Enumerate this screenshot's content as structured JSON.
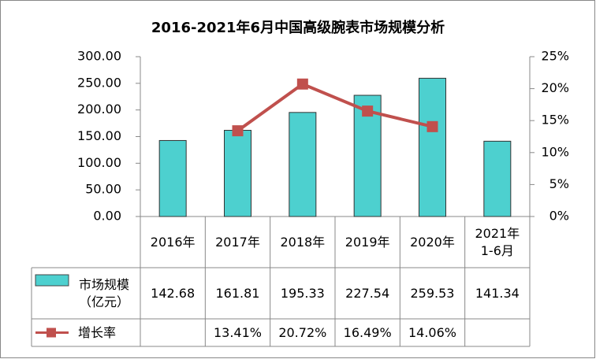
{
  "chart_data": {
    "type": "bar-line",
    "title": "2016-2021年6月中国高级腕表市场规模分析",
    "categories": [
      "2016年",
      "2017年",
      "2018年",
      "2019年",
      "2020年",
      "2021年\n1-6月"
    ],
    "series": [
      {
        "name": "市场规模\n（亿元）",
        "type": "bar",
        "color": "#4dd0cf",
        "values": [
          142.68,
          161.81,
          195.33,
          227.54,
          259.53,
          141.34
        ]
      },
      {
        "name": "增长率",
        "type": "line",
        "axis": "y2",
        "color": "#c0504d",
        "values": [
          null,
          13.41,
          20.72,
          16.49,
          14.06,
          null
        ],
        "value_labels": [
          null,
          "13.41%",
          "20.72%",
          "16.49%",
          "14.06%",
          null
        ]
      }
    ],
    "ylim": [
      0,
      300
    ],
    "yticks": [
      {
        "value": 0,
        "label": "0.00"
      },
      {
        "value": 50,
        "label": "50.00"
      },
      {
        "value": 100,
        "label": "100.00"
      },
      {
        "value": 150,
        "label": "150.00"
      },
      {
        "value": 200,
        "label": "200.00"
      },
      {
        "value": 250,
        "label": "250.00"
      },
      {
        "value": 300,
        "label": "300.00"
      }
    ],
    "y2lim": [
      0,
      25
    ],
    "y2ticks": [
      {
        "value": 0,
        "label": "0%"
      },
      {
        "value": 5,
        "label": "5%"
      },
      {
        "value": 10,
        "label": "10%"
      },
      {
        "value": 15,
        "label": "15%"
      },
      {
        "value": 20,
        "label": "20%"
      },
      {
        "value": 25,
        "label": "25%"
      }
    ]
  }
}
